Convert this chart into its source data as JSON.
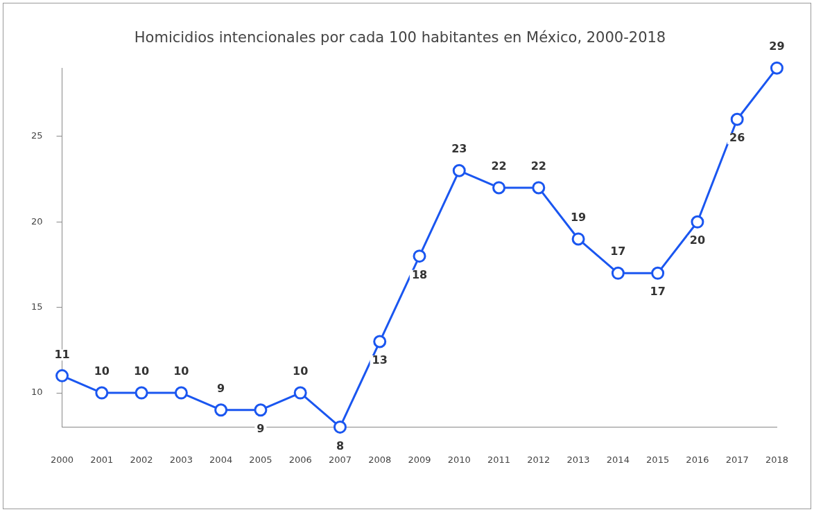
{
  "chart_data": {
    "type": "line",
    "title": "Homicidios intencionales por cada 100 habitantes en México, 2000-2018",
    "categories": [
      "2000",
      "2001",
      "2002",
      "2003",
      "2004",
      "2005",
      "2006",
      "2007",
      "2008",
      "2009",
      "2010",
      "2011",
      "2012",
      "2013",
      "2014",
      "2015",
      "2016",
      "2017",
      "2018"
    ],
    "series": [
      {
        "color": "#1a56f0",
        "values": [
          11,
          10,
          10,
          10,
          9,
          9,
          10,
          8,
          13,
          18,
          23,
          22,
          22,
          19,
          17,
          17,
          20,
          26,
          29
        ]
      }
    ],
    "ylim": [
      8,
      29
    ],
    "yticks": [
      10,
      15,
      20,
      25
    ],
    "grid": false,
    "legend": false,
    "marker": "circle",
    "line_style": "solid",
    "data_labels": true
  }
}
